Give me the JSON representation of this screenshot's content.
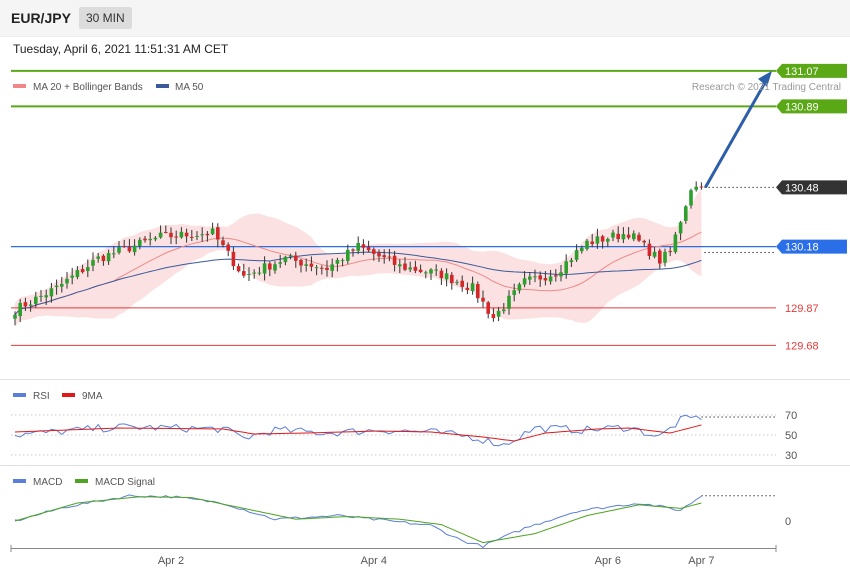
{
  "header": {
    "symbol": "EUR/JPY",
    "timeframe": "30 MIN",
    "timestamp": "Tuesday, April 6, 2021 11:51:31 AM CET"
  },
  "colors": {
    "bullish": "#2ca02c",
    "bearish": "#d62728",
    "target": "#5aa816",
    "price_tag": "#333333",
    "ma50": "#3a5a9c",
    "bollinger": "#fbe1e1",
    "ma20": "#f18888",
    "pivot": "#2b6fe8",
    "support": "#e63a3a",
    "rsi": "#5b7fd8",
    "rsi_ma": "#e01818",
    "macd": "#5b7fd8",
    "macd_signal": "#4ea322"
  },
  "main_legend": [
    {
      "label": "MA 20 + Bollinger Bands",
      "color": "#f18888"
    },
    {
      "label": "MA 50",
      "color": "#3a5a9c"
    }
  ],
  "credit": "Research © 2021 Trading Central",
  "rsi_legend": [
    {
      "label": "RSI",
      "color": "#5b7fd8"
    },
    {
      "label": "9MA",
      "color": "#e01818"
    }
  ],
  "macd_legend": [
    {
      "label": "MACD",
      "color": "#5b7fd8"
    },
    {
      "label": "MACD Signal",
      "color": "#4ea322"
    }
  ],
  "chart_data": [
    {
      "type": "candlestick",
      "title": "EUR/JPY 30 MIN",
      "y_range": [
        129.53,
        131.14
      ],
      "x_labels": [
        {
          "label": "Apr 2",
          "bar": 30
        },
        {
          "label": "Apr 4",
          "bar": 69
        },
        {
          "label": "Apr 6",
          "bar": 114
        },
        {
          "label": "Apr 7",
          "bar": 132
        }
      ],
      "levels": [
        {
          "value": 131.07,
          "label": "131.07",
          "kind": "target"
        },
        {
          "value": 130.89,
          "label": "130.89",
          "kind": "target"
        },
        {
          "value": 130.48,
          "label": "130.48",
          "kind": "current"
        },
        {
          "value": 130.18,
          "label": "130.18",
          "kind": "pivot"
        },
        {
          "value": 129.87,
          "label": "129.87",
          "kind": "support"
        },
        {
          "value": 129.68,
          "label": "129.68",
          "kind": "support"
        }
      ],
      "arrow": {
        "from": 130.48,
        "to": 131.07
      },
      "close_keypoints": [
        [
          0,
          129.86
        ],
        [
          8,
          129.97
        ],
        [
          16,
          130.12
        ],
        [
          28,
          130.23
        ],
        [
          38,
          130.25
        ],
        [
          44,
          130.03
        ],
        [
          52,
          130.12
        ],
        [
          60,
          130.07
        ],
        [
          66,
          130.18
        ],
        [
          74,
          130.08
        ],
        [
          82,
          130.04
        ],
        [
          88,
          129.97
        ],
        [
          92,
          129.82
        ],
        [
          98,
          130.0
        ],
        [
          104,
          130.05
        ],
        [
          110,
          130.2
        ],
        [
          118,
          130.25
        ],
        [
          124,
          130.11
        ],
        [
          126,
          130.15
        ],
        [
          130,
          130.48
        ]
      ],
      "series": [
        {
          "name": "MA 20 + Bollinger Bands",
          "values": "computed from closes"
        },
        {
          "name": "MA 50",
          "values": "computed from closes"
        }
      ]
    },
    {
      "type": "line",
      "title": "RSI",
      "y_ticks": [
        70,
        50,
        30
      ],
      "y_range": [
        25,
        75
      ],
      "series": [
        {
          "name": "RSI",
          "keypoints": [
            [
              0,
              50
            ],
            [
              20,
              58
            ],
            [
              40,
              56
            ],
            [
              44,
              47
            ],
            [
              50,
              55
            ],
            [
              60,
              52
            ],
            [
              70,
              55
            ],
            [
              80,
              53
            ],
            [
              88,
              48
            ],
            [
              94,
              40
            ],
            [
              100,
              57
            ],
            [
              110,
              55
            ],
            [
              118,
              58
            ],
            [
              124,
              48
            ],
            [
              128,
              65
            ],
            [
              132,
              68
            ]
          ]
        },
        {
          "name": "9MA",
          "keypoints": [
            [
              0,
              53
            ],
            [
              20,
              57
            ],
            [
              40,
              56
            ],
            [
              46,
              51
            ],
            [
              56,
              52
            ],
            [
              70,
              54
            ],
            [
              80,
              53
            ],
            [
              90,
              48
            ],
            [
              96,
              44
            ],
            [
              102,
              52
            ],
            [
              112,
              56
            ],
            [
              118,
              57
            ],
            [
              126,
              52
            ],
            [
              132,
              60
            ]
          ]
        }
      ]
    },
    {
      "type": "line",
      "title": "MACD",
      "y_ticks": [
        0
      ],
      "series": [
        {
          "name": "MACD",
          "keypoints": [
            [
              0,
              0.0
            ],
            [
              10,
              0.16
            ],
            [
              22,
              0.28
            ],
            [
              30,
              0.27
            ],
            [
              40,
              0.2
            ],
            [
              50,
              0.02
            ],
            [
              62,
              0.06
            ],
            [
              72,
              0.0
            ],
            [
              80,
              -0.05
            ],
            [
              86,
              -0.22
            ],
            [
              90,
              -0.28
            ],
            [
              98,
              -0.08
            ],
            [
              108,
              0.11
            ],
            [
              120,
              0.2
            ],
            [
              128,
              0.12
            ],
            [
              132,
              0.28
            ]
          ]
        },
        {
          "name": "MACD Signal",
          "keypoints": [
            [
              0,
              0.0
            ],
            [
              12,
              0.2
            ],
            [
              24,
              0.27
            ],
            [
              34,
              0.26
            ],
            [
              44,
              0.14
            ],
            [
              54,
              0.02
            ],
            [
              64,
              0.05
            ],
            [
              74,
              0.02
            ],
            [
              82,
              -0.04
            ],
            [
              90,
              -0.24
            ],
            [
              100,
              -0.14
            ],
            [
              110,
              0.06
            ],
            [
              120,
              0.18
            ],
            [
              128,
              0.14
            ],
            [
              132,
              0.2
            ]
          ]
        }
      ]
    }
  ]
}
